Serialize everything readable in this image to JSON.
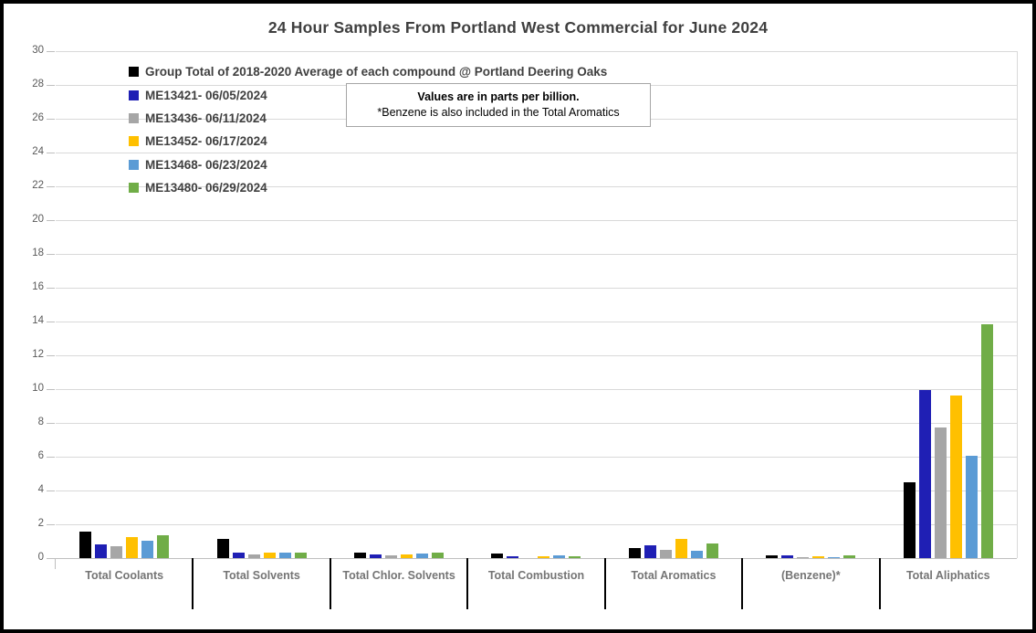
{
  "title": "24 Hour Samples From Portland West Commercial for June 2024",
  "note": {
    "line1": "Values are in parts per billion.",
    "line2": "*Benzene is also included in the Total Aromatics"
  },
  "colors": {
    "grid": "#d9d9d9",
    "axis_text": "#595959",
    "category_text": "#757575",
    "title_text": "#3f3f3f",
    "frame_border": "#000000"
  },
  "chart_data": {
    "type": "bar",
    "title": "24 Hour Samples From Portland West Commercial for June 2024",
    "ylabel": "",
    "xlabel": "",
    "ylim": [
      0,
      30
    ],
    "yticks": [
      0,
      2,
      4,
      6,
      8,
      10,
      12,
      14,
      16,
      18,
      20,
      22,
      24,
      26,
      28,
      30
    ],
    "grid": true,
    "legend_position": "top-left-inside",
    "categories": [
      "Total Coolants",
      "Total Solvents",
      "Total Chlor. Solvents",
      "Total Combustion",
      "Total Aromatics",
      "(Benzene)*",
      "Total Aliphatics"
    ],
    "series": [
      {
        "name": "Group Total of 2018-2020 Average of each compound @ Portland Deering Oaks",
        "color": "#000000",
        "values": [
          1.55,
          1.15,
          0.35,
          0.25,
          0.6,
          0.17,
          4.5
        ]
      },
      {
        "name": "ME13421- 06/05/2024",
        "color": "#1f1fb4",
        "values": [
          0.8,
          0.35,
          0.2,
          0.1,
          0.75,
          0.14,
          9.95
        ]
      },
      {
        "name": "ME13436- 06/11/2024",
        "color": "#a6a6a6",
        "values": [
          0.7,
          0.2,
          0.15,
          0,
          0.5,
          0.08,
          7.75
        ]
      },
      {
        "name": "ME13452- 06/17/2024",
        "color": "#ffc000",
        "values": [
          1.25,
          0.35,
          0.2,
          0.1,
          1.15,
          0.1,
          9.6
        ]
      },
      {
        "name": "ME13468- 06/23/2024",
        "color": "#5b9bd5",
        "values": [
          1.05,
          0.3,
          0.25,
          0.15,
          0.45,
          0.08,
          6.05
        ]
      },
      {
        "name": "ME13480- 06/29/2024",
        "color": "#70ad47",
        "values": [
          1.35,
          0.3,
          0.3,
          0.13,
          0.85,
          0.15,
          13.85
        ]
      }
    ]
  }
}
